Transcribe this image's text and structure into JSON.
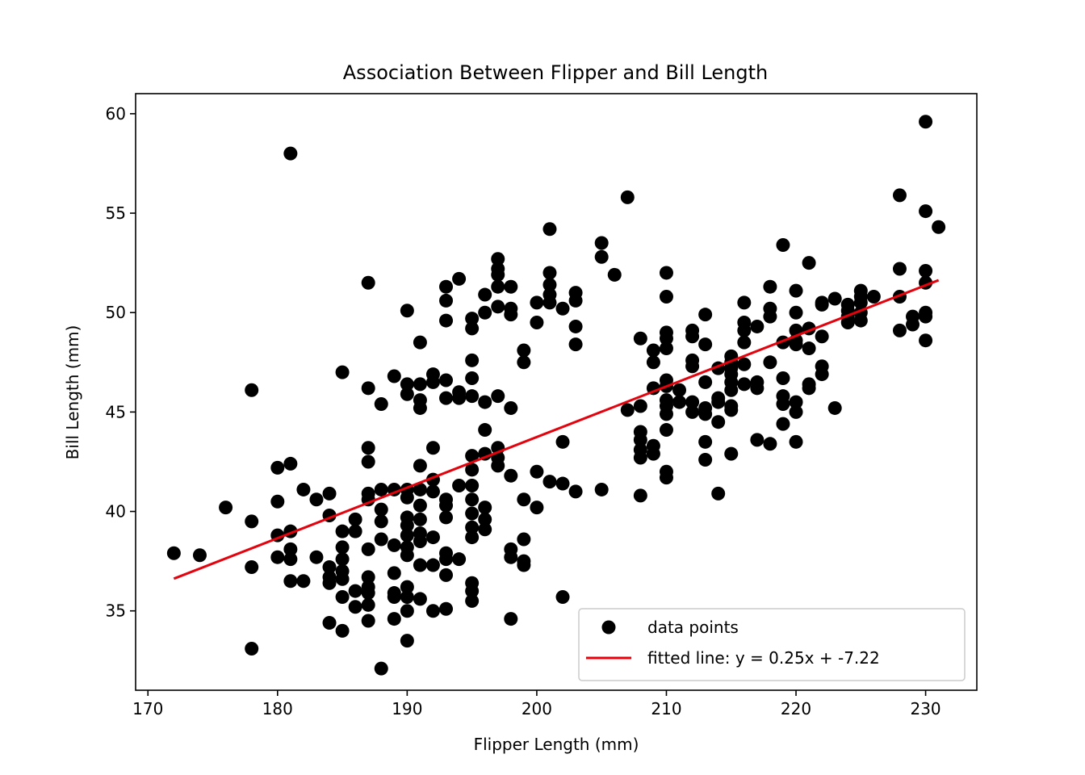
{
  "chart_data": {
    "type": "scatter",
    "title": "Association Between Flipper and Bill Length",
    "xlabel": "Flipper Length (mm)",
    "ylabel": "Bill Length (mm)",
    "xlim": [
      169.05,
      233.95
    ],
    "ylim": [
      31.01,
      61.01
    ],
    "xticks": [
      170,
      180,
      190,
      200,
      210,
      220,
      230
    ],
    "yticks": [
      35,
      40,
      45,
      50,
      55,
      60
    ],
    "grid": false,
    "legend_position": "lower-right",
    "colors": {
      "points": "#000000",
      "line": "#e8000b",
      "axes": "#000000",
      "legend_border": "#cccccc"
    },
    "series": [
      {
        "name": "data points",
        "kind": "scatter",
        "points": [
          [
            172,
            37.9
          ],
          [
            174,
            37.8
          ],
          [
            176,
            40.2
          ],
          [
            178,
            46.1
          ],
          [
            178,
            39.5
          ],
          [
            178,
            37.2
          ],
          [
            178,
            33.1
          ],
          [
            180,
            42.2
          ],
          [
            180,
            40.5
          ],
          [
            180,
            38.8
          ],
          [
            180,
            37.7
          ],
          [
            181,
            58.0
          ],
          [
            181,
            42.4
          ],
          [
            181,
            39.0
          ],
          [
            181,
            38.1
          ],
          [
            181,
            37.6
          ],
          [
            181,
            36.5
          ],
          [
            182,
            41.1
          ],
          [
            182,
            36.5
          ],
          [
            183,
            40.6
          ],
          [
            183,
            37.7
          ],
          [
            184,
            40.9
          ],
          [
            184,
            39.8
          ],
          [
            184,
            37.2
          ],
          [
            184,
            36.7
          ],
          [
            184,
            36.4
          ],
          [
            184,
            34.4
          ],
          [
            185,
            47.0
          ],
          [
            185,
            39.0
          ],
          [
            185,
            38.2
          ],
          [
            185,
            37.6
          ],
          [
            185,
            37.0
          ],
          [
            185,
            36.6
          ],
          [
            185,
            35.7
          ],
          [
            185,
            34.0
          ],
          [
            186,
            39.6
          ],
          [
            186,
            39.0
          ],
          [
            186,
            36.0
          ],
          [
            186,
            35.2
          ],
          [
            187,
            51.5
          ],
          [
            187,
            46.2
          ],
          [
            187,
            43.2
          ],
          [
            187,
            42.5
          ],
          [
            187,
            40.9
          ],
          [
            187,
            40.6
          ],
          [
            187,
            38.1
          ],
          [
            187,
            36.7
          ],
          [
            187,
            36.2
          ],
          [
            187,
            35.9
          ],
          [
            187,
            35.3
          ],
          [
            187,
            34.5
          ],
          [
            188,
            45.4
          ],
          [
            188,
            41.1
          ],
          [
            188,
            40.1
          ],
          [
            188,
            39.5
          ],
          [
            188,
            38.6
          ],
          [
            188,
            32.1
          ],
          [
            189,
            46.8
          ],
          [
            189,
            41.1
          ],
          [
            189,
            38.3
          ],
          [
            189,
            36.9
          ],
          [
            189,
            35.9
          ],
          [
            189,
            35.7
          ],
          [
            189,
            34.6
          ],
          [
            190,
            50.1
          ],
          [
            190,
            46.4
          ],
          [
            190,
            45.9
          ],
          [
            190,
            41.1
          ],
          [
            190,
            40.7
          ],
          [
            190,
            39.7
          ],
          [
            190,
            39.3
          ],
          [
            190,
            38.8
          ],
          [
            190,
            38.2
          ],
          [
            190,
            37.8
          ],
          [
            190,
            36.2
          ],
          [
            190,
            35.7
          ],
          [
            190,
            35.0
          ],
          [
            190,
            33.5
          ],
          [
            191,
            48.5
          ],
          [
            191,
            46.4
          ],
          [
            191,
            45.6
          ],
          [
            191,
            45.2
          ],
          [
            191,
            42.3
          ],
          [
            191,
            41.1
          ],
          [
            191,
            40.3
          ],
          [
            191,
            39.6
          ],
          [
            191,
            38.9
          ],
          [
            191,
            38.5
          ],
          [
            191,
            37.3
          ],
          [
            191,
            35.6
          ],
          [
            192,
            46.9
          ],
          [
            192,
            46.5
          ],
          [
            192,
            43.2
          ],
          [
            192,
            41.6
          ],
          [
            192,
            41.0
          ],
          [
            192,
            38.7
          ],
          [
            192,
            37.3
          ],
          [
            192,
            35.0
          ],
          [
            193,
            51.3
          ],
          [
            193,
            50.6
          ],
          [
            193,
            49.6
          ],
          [
            193,
            46.6
          ],
          [
            193,
            45.7
          ],
          [
            193,
            40.6
          ],
          [
            193,
            40.3
          ],
          [
            193,
            39.7
          ],
          [
            193,
            37.9
          ],
          [
            193,
            37.6
          ],
          [
            193,
            36.8
          ],
          [
            193,
            35.1
          ],
          [
            194,
            51.7
          ],
          [
            194,
            46.0
          ],
          [
            194,
            45.7
          ],
          [
            194,
            41.3
          ],
          [
            194,
            37.6
          ],
          [
            195,
            49.7
          ],
          [
            195,
            49.2
          ],
          [
            195,
            47.6
          ],
          [
            195,
            46.7
          ],
          [
            195,
            45.8
          ],
          [
            195,
            42.8
          ],
          [
            195,
            42.1
          ],
          [
            195,
            41.3
          ],
          [
            195,
            40.6
          ],
          [
            195,
            39.9
          ],
          [
            195,
            39.2
          ],
          [
            195,
            38.7
          ],
          [
            195,
            36.4
          ],
          [
            195,
            36.0
          ],
          [
            195,
            35.5
          ],
          [
            196,
            50.9
          ],
          [
            196,
            50.0
          ],
          [
            196,
            45.5
          ],
          [
            196,
            44.1
          ],
          [
            196,
            42.9
          ],
          [
            196,
            40.2
          ],
          [
            196,
            39.6
          ],
          [
            196,
            39.1
          ],
          [
            197,
            52.7
          ],
          [
            197,
            52.2
          ],
          [
            197,
            51.9
          ],
          [
            197,
            51.3
          ],
          [
            197,
            50.3
          ],
          [
            197,
            45.8
          ],
          [
            197,
            43.2
          ],
          [
            197,
            42.7
          ],
          [
            197,
            42.3
          ],
          [
            198,
            51.3
          ],
          [
            198,
            50.2
          ],
          [
            198,
            49.9
          ],
          [
            198,
            45.2
          ],
          [
            198,
            41.8
          ],
          [
            198,
            38.1
          ],
          [
            198,
            37.7
          ],
          [
            198,
            34.6
          ],
          [
            199,
            48.1
          ],
          [
            199,
            47.5
          ],
          [
            199,
            40.6
          ],
          [
            199,
            38.6
          ],
          [
            199,
            37.5
          ],
          [
            199,
            37.3
          ],
          [
            200,
            50.5
          ],
          [
            200,
            49.5
          ],
          [
            200,
            42.0
          ],
          [
            200,
            40.2
          ],
          [
            201,
            54.2
          ],
          [
            201,
            52.0
          ],
          [
            201,
            51.4
          ],
          [
            201,
            50.9
          ],
          [
            201,
            50.5
          ],
          [
            201,
            41.5
          ],
          [
            202,
            50.2
          ],
          [
            202,
            43.5
          ],
          [
            202,
            41.4
          ],
          [
            202,
            35.7
          ],
          [
            203,
            51.0
          ],
          [
            203,
            50.6
          ],
          [
            203,
            49.3
          ],
          [
            203,
            48.4
          ],
          [
            203,
            41.0
          ],
          [
            205,
            53.5
          ],
          [
            205,
            52.8
          ],
          [
            205,
            41.1
          ],
          [
            206,
            51.9
          ],
          [
            207,
            55.8
          ],
          [
            207,
            45.1
          ],
          [
            208,
            48.7
          ],
          [
            208,
            45.3
          ],
          [
            208,
            44.0
          ],
          [
            208,
            43.6
          ],
          [
            208,
            43.1
          ],
          [
            208,
            42.7
          ],
          [
            208,
            40.8
          ],
          [
            209,
            48.1
          ],
          [
            209,
            47.5
          ],
          [
            209,
            46.2
          ],
          [
            209,
            43.3
          ],
          [
            209,
            42.9
          ],
          [
            210,
            52.0
          ],
          [
            210,
            50.8
          ],
          [
            210,
            49.0
          ],
          [
            210,
            48.7
          ],
          [
            210,
            48.2
          ],
          [
            210,
            46.6
          ],
          [
            210,
            46.3
          ],
          [
            210,
            45.6
          ],
          [
            210,
            45.3
          ],
          [
            210,
            44.9
          ],
          [
            210,
            44.1
          ],
          [
            210,
            42.0
          ],
          [
            210,
            41.7
          ],
          [
            211,
            46.1
          ],
          [
            211,
            45.5
          ],
          [
            212,
            49.1
          ],
          [
            212,
            48.8
          ],
          [
            212,
            47.6
          ],
          [
            212,
            47.3
          ],
          [
            212,
            45.5
          ],
          [
            212,
            45.0
          ],
          [
            213,
            49.9
          ],
          [
            213,
            48.4
          ],
          [
            213,
            46.5
          ],
          [
            213,
            45.2
          ],
          [
            213,
            44.9
          ],
          [
            213,
            43.5
          ],
          [
            213,
            42.6
          ],
          [
            214,
            47.2
          ],
          [
            214,
            45.7
          ],
          [
            214,
            45.5
          ],
          [
            214,
            44.5
          ],
          [
            214,
            40.9
          ],
          [
            215,
            47.8
          ],
          [
            215,
            47.5
          ],
          [
            215,
            47.2
          ],
          [
            215,
            46.9
          ],
          [
            215,
            46.5
          ],
          [
            215,
            46.1
          ],
          [
            215,
            45.3
          ],
          [
            215,
            45.1
          ],
          [
            215,
            42.9
          ],
          [
            216,
            50.5
          ],
          [
            216,
            49.5
          ],
          [
            216,
            49.1
          ],
          [
            216,
            48.5
          ],
          [
            216,
            47.4
          ],
          [
            216,
            46.4
          ],
          [
            217,
            49.3
          ],
          [
            217,
            46.5
          ],
          [
            217,
            46.2
          ],
          [
            217,
            43.6
          ],
          [
            218,
            51.3
          ],
          [
            218,
            50.2
          ],
          [
            218,
            49.8
          ],
          [
            218,
            47.5
          ],
          [
            218,
            43.4
          ],
          [
            219,
            53.4
          ],
          [
            219,
            48.5
          ],
          [
            219,
            46.7
          ],
          [
            219,
            45.8
          ],
          [
            219,
            45.4
          ],
          [
            219,
            44.4
          ],
          [
            220,
            51.1
          ],
          [
            220,
            50.0
          ],
          [
            220,
            49.1
          ],
          [
            220,
            48.6
          ],
          [
            220,
            48.4
          ],
          [
            220,
            45.5
          ],
          [
            220,
            45.0
          ],
          [
            220,
            43.5
          ],
          [
            221,
            52.5
          ],
          [
            221,
            49.2
          ],
          [
            221,
            48.2
          ],
          [
            221,
            46.4
          ],
          [
            221,
            46.2
          ],
          [
            222,
            50.5
          ],
          [
            222,
            50.4
          ],
          [
            222,
            48.8
          ],
          [
            222,
            47.3
          ],
          [
            222,
            46.9
          ],
          [
            223,
            50.7
          ],
          [
            223,
            45.2
          ],
          [
            224,
            50.4
          ],
          [
            224,
            50.1
          ],
          [
            224,
            49.8
          ],
          [
            224,
            49.5
          ],
          [
            225,
            51.1
          ],
          [
            225,
            50.8
          ],
          [
            225,
            50.5
          ],
          [
            225,
            50.0
          ],
          [
            225,
            49.6
          ],
          [
            226,
            50.8
          ],
          [
            228,
            55.9
          ],
          [
            228,
            52.2
          ],
          [
            228,
            50.8
          ],
          [
            228,
            49.1
          ],
          [
            229,
            49.8
          ],
          [
            229,
            49.4
          ],
          [
            230,
            59.6
          ],
          [
            230,
            55.1
          ],
          [
            230,
            52.1
          ],
          [
            230,
            51.5
          ],
          [
            230,
            50.0
          ],
          [
            230,
            49.8
          ],
          [
            230,
            48.6
          ],
          [
            231,
            54.3
          ]
        ]
      },
      {
        "name": "fitted line: y = 0.25x + -7.22",
        "kind": "line",
        "x": [
          172,
          231
        ],
        "y": [
          36.62,
          51.63
        ]
      }
    ]
  }
}
